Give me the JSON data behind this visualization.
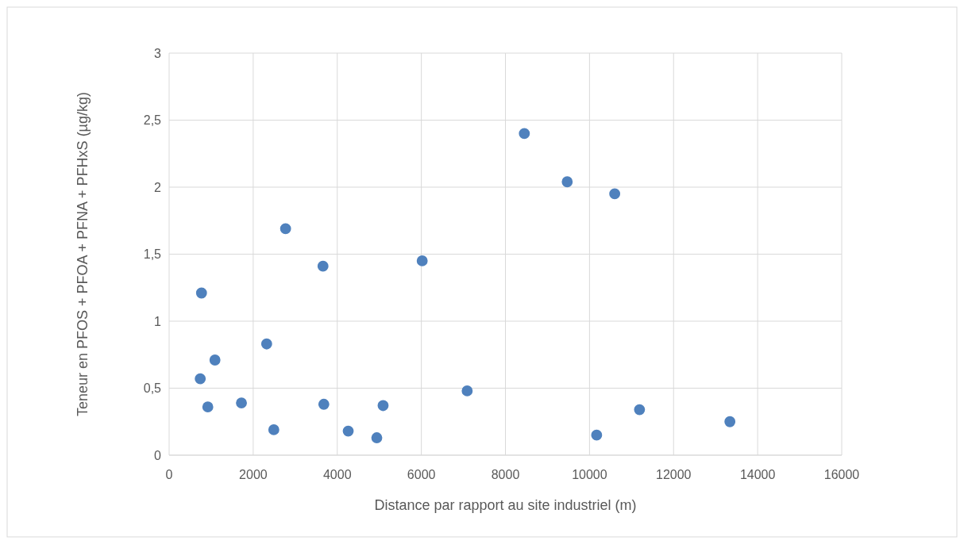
{
  "chart_data": {
    "type": "scatter",
    "xlabel": "Distance par rapport au site industriel (m)",
    "ylabel": "Teneur en PFOS + PFOA + PFNA + PFHxS (µg/kg)",
    "x": [
      770,
      740,
      920,
      1090,
      1720,
      2320,
      2490,
      2770,
      3660,
      3680,
      4260,
      4940,
      5090,
      6020,
      7090,
      8450,
      9470,
      10600,
      10170,
      11190,
      13340
    ],
    "values": [
      1.21,
      0.57,
      0.36,
      0.71,
      0.39,
      0.83,
      0.19,
      1.69,
      1.41,
      0.38,
      0.18,
      0.13,
      0.37,
      1.45,
      0.48,
      2.4,
      2.04,
      1.95,
      0.15,
      0.34,
      0.25
    ],
    "color": "#4f81bd",
    "marker": "circle",
    "grid": true,
    "xlim": [
      0,
      16000
    ],
    "xticks": [
      0,
      2000,
      4000,
      6000,
      8000,
      10000,
      12000,
      14000,
      16000
    ],
    "ylim": [
      0,
      3
    ],
    "yticks": [
      0,
      {
        "value": 0.5,
        "label": "0,5"
      },
      1,
      {
        "value": 1.5,
        "label": "1,5"
      },
      2,
      {
        "value": 2.5,
        "label": "2,5"
      },
      3
    ]
  }
}
